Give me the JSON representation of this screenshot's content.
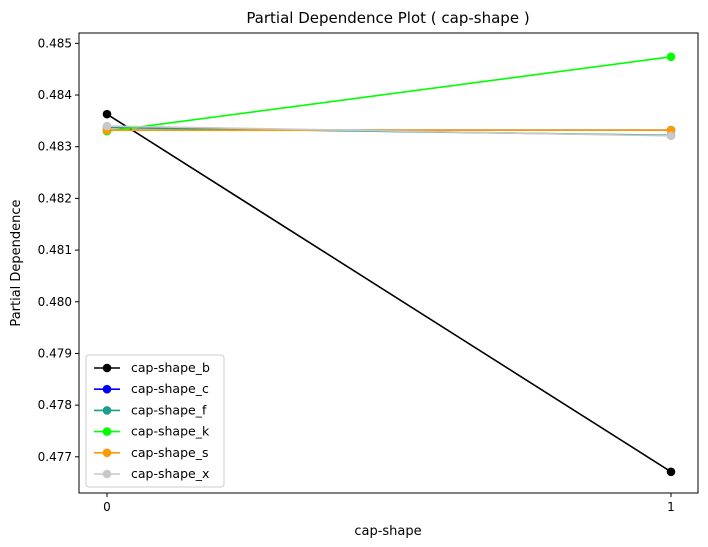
{
  "chart_data": {
    "type": "line",
    "title": "Partial Dependence Plot ( cap-shape )",
    "xlabel": "cap-shape",
    "ylabel": "Partial Dependence",
    "x": [
      0,
      1
    ],
    "xticks": [
      "0",
      "1"
    ],
    "ylim": [
      0.4763,
      0.4852
    ],
    "yticks": [
      "0.477",
      "0.478",
      "0.479",
      "0.480",
      "0.481",
      "0.482",
      "0.483",
      "0.484",
      "0.485"
    ],
    "grid": false,
    "legend_position": "lower-left",
    "series": [
      {
        "name": "cap-shape_b",
        "color": "#000000",
        "values": [
          0.48363,
          0.47671
        ]
      },
      {
        "name": "cap-shape_c",
        "color": "#0000ff",
        "values": [
          0.48332,
          0.48332
        ]
      },
      {
        "name": "cap-shape_f",
        "color": "#1a9e8a",
        "values": [
          0.48337,
          0.48322
        ]
      },
      {
        "name": "cap-shape_k",
        "color": "#00ff00",
        "values": [
          0.4833,
          0.48474
        ]
      },
      {
        "name": "cap-shape_s",
        "color": "#ff9900",
        "values": [
          0.48332,
          0.48332
        ]
      },
      {
        "name": "cap-shape_x",
        "color": "#c8c8c8",
        "values": [
          0.4834,
          0.48321
        ]
      }
    ]
  }
}
